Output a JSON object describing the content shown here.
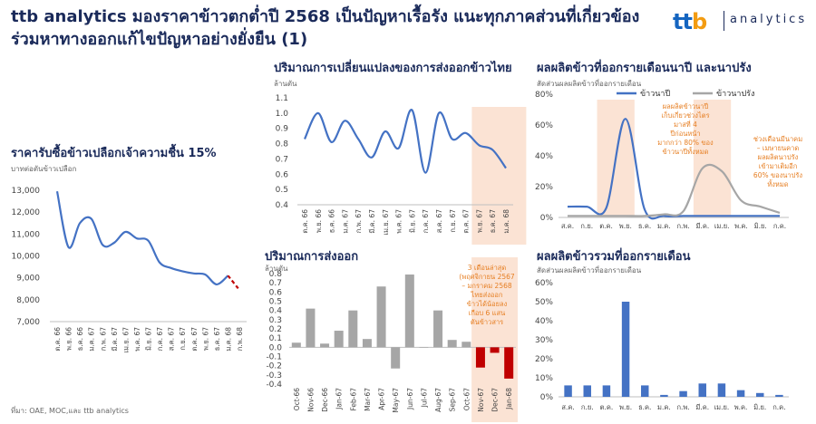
{
  "header": {
    "title_line1": "ttb analytics มองราคาข้าวตกต่ำปี 2568 เป็นปัญหาเรื้อรัง แนะทุกภาคส่วนที่เกี่ยวข้อง",
    "title_line2": "ร่วมหาทางออกแก้ไขปัญหาอย่างยั่งยืน (1)",
    "logo_mark": "tt",
    "logo_mark_accent": "b",
    "logo_word": "analytics"
  },
  "footer": {
    "source": "ที่มา: OAE, MOC,และ ttb analytics"
  },
  "colors": {
    "navy": "#1a2a5a",
    "blue": "#4472c4",
    "gray": "#a6a6a6",
    "red": "#c00000",
    "highlight": "#fbe3d4",
    "orange_text": "#e67e22"
  },
  "chart_data": [
    {
      "id": "paddy-price",
      "type": "line",
      "title": "ราคารับซื้อข้าวเปลือกเจ้าความชื้น 15%",
      "ylabel": "บาทต่อตันข้าวเปลือก",
      "ylim": [
        7000,
        13000
      ],
      "yticks": [
        "13,000",
        "12,000",
        "11,000",
        "10,000",
        "9,000",
        "8,000",
        "7,000"
      ],
      "categories": [
        "ต.ค. 66",
        "พ.ย. 66",
        "ธ.ค. 66",
        "ม.ค. 67",
        "ก.พ. 67",
        "มี.ค. 67",
        "เม.ย. 67",
        "พ.ค. 67",
        "มิ.ย. 67",
        "ก.ค. 67",
        "ส.ค. 67",
        "ก.ย. 67",
        "ต.ค. 67",
        "พ.ย. 67",
        "ธ.ค. 67",
        "ม.ค. 68",
        "ก.พ. 68"
      ],
      "values": [
        12950,
        10400,
        11500,
        11700,
        10500,
        10600,
        11100,
        10800,
        10700,
        9700,
        9450,
        9300,
        9200,
        9150,
        8700,
        9100,
        8450
      ],
      "dashed_from_index": 15,
      "dashed_color": "#c00000",
      "solid_color": "#4472c4"
    },
    {
      "id": "export-change",
      "type": "line",
      "title": "ปริมาณการเปลี่ยนแปลงของการส่งออกข้าวไทย",
      "ylabel": "ล้านตัน",
      "ylim": [
        0.4,
        1.1
      ],
      "yticks": [
        "1.1",
        "1.0",
        "0.9",
        "0.8",
        "0.7",
        "0.6",
        "0.5",
        "0.4"
      ],
      "categories": [
        "ต.ค. 66",
        "พ.ย. 66",
        "ธ.ค. 66",
        "ม.ค. 67",
        "ก.พ. 67",
        "มี.ค. 67",
        "เม.ย. 67",
        "พ.ค. 67",
        "มิ.ย. 67",
        "ก.ค. 67",
        "ส.ค. 67",
        "ก.ย. 67",
        "ต.ค. 67",
        "พ.ย. 67",
        "ธ.ค. 67",
        "ม.ค. 68"
      ],
      "values": [
        0.83,
        1.0,
        0.81,
        0.95,
        0.83,
        0.71,
        0.88,
        0.77,
        1.02,
        0.61,
        1.0,
        0.83,
        0.87,
        0.79,
        0.76,
        0.64
      ],
      "highlight_from_index": 13,
      "color": "#4472c4"
    },
    {
      "id": "monthly-output-share",
      "type": "line",
      "title": "ผลผลิตข้าวที่ออกรายเดือนนาปี และนาปรัง",
      "ylabel": "สัดส่วนผลผลิตข้าวที่ออกรายเดือน",
      "ylim": [
        0,
        80
      ],
      "yticks": [
        "80%",
        "60%",
        "40%",
        "20%",
        "0%"
      ],
      "categories": [
        "ส.ค.",
        "ก.ย.",
        "ต.ค.",
        "พ.ย.",
        "ธ.ค.",
        "ม.ค.",
        "ก.พ.",
        "มี.ค.",
        "เม.ย.",
        "พ.ค.",
        "มิ.ย.",
        "ก.ค."
      ],
      "series": [
        {
          "name": "ข้าวนาปี",
          "color": "#4472c4",
          "values": [
            7,
            7,
            6,
            64,
            5,
            1,
            1,
            1,
            1,
            1,
            1,
            1
          ]
        },
        {
          "name": "ข้าวนาปรัง",
          "color": "#a6a6a6",
          "values": [
            1,
            1,
            1,
            1,
            1,
            2,
            4,
            32,
            30,
            11,
            7,
            3
          ]
        }
      ],
      "highlight_indices": [
        [
          2,
          3
        ],
        [
          7,
          8
        ]
      ],
      "annotations": [
        "ผลผลิตข้าวนาปี เก็บเกี่ยวช่วงไตร มาสที่ 4 ปีก่อนหน้า มากกว่า 80% ของ ข้าวนาปีทั้งหมด",
        "ช่วงเดือนมีนาคม – เมษายนคาด ผลผลิตนาปรัง เข้ามาเติมอีก 60% ของนาปรัง ทั้งหมด"
      ]
    },
    {
      "id": "export-volume",
      "type": "bar",
      "title": "ปริมาณการส่งออก",
      "ylabel": "ล้านตัน",
      "ylim": [
        -0.4,
        0.8
      ],
      "yticks": [
        "0.8",
        "0.7",
        "0.6",
        "0.5",
        "0.4",
        "0.3",
        "0.2",
        "0.1",
        "0.0",
        "-0.1",
        "-0.2",
        "-0.3",
        "-0.4"
      ],
      "categories": [
        "Oct-66",
        "Nov-66",
        "Dec-66",
        "Jan-67",
        "Feb-67",
        "Mar-67",
        "Apr-67",
        "May-67",
        "Jun-67",
        "Jul-67",
        "Aug-67",
        "Sep-67",
        "Oct-67",
        "Nov-67",
        "Dec-67",
        "Jan-68"
      ],
      "values": [
        0.05,
        0.42,
        0.04,
        0.18,
        0.4,
        0.09,
        0.66,
        -0.23,
        0.79,
        0.0,
        0.4,
        0.08,
        0.06,
        -0.22,
        -0.06,
        -0.34
      ],
      "highlight_from_index": 13,
      "color_positive": "#a6a6a6",
      "color_highlight": "#c00000",
      "annotation": "3 เดือนล่าสุด (พฤศจิกายน 2567 – มกราคม 2568 ไทยส่งออก ข้าวได้น้อยลง เกือบ 6 แสน ตันข้าวสาร"
    },
    {
      "id": "total-output-share",
      "type": "bar",
      "title": "ผลผลิตข้าวรวมที่ออกรายเดือน",
      "ylabel": "สัดส่วนผลผลิตข้าวที่ออกรายเดือน",
      "ylim": [
        0,
        60
      ],
      "yticks": [
        "60%",
        "50%",
        "40%",
        "30%",
        "20%",
        "10%",
        "0%"
      ],
      "categories": [
        "ส.ค.",
        "ก.ย.",
        "ต.ค.",
        "พ.ย.",
        "ธ.ค.",
        "ม.ค.",
        "ก.พ.",
        "มี.ค.",
        "เม.ย.",
        "พ.ค.",
        "มิ.ย.",
        "ก.ค."
      ],
      "values": [
        6,
        6,
        6,
        50,
        6,
        1,
        3,
        7,
        7,
        3.5,
        2,
        1
      ],
      "color": "#4472c4"
    }
  ]
}
